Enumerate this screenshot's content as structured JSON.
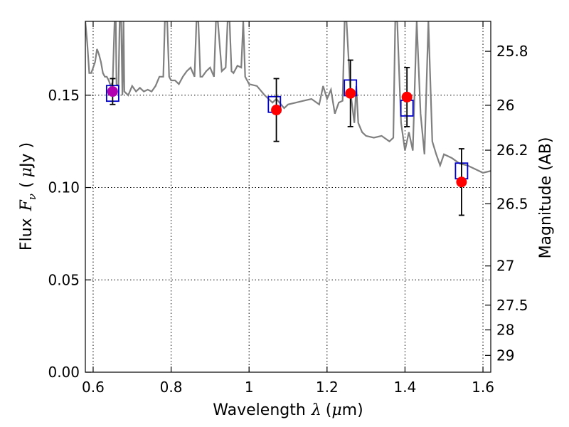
{
  "chart_data": {
    "type": "scatter",
    "xlabel_prefix": "Wavelength",
    "xlabel_symbol": "λ",
    "xlabel_unit_open": "(",
    "xlabel_unit_mu": "μ",
    "xlabel_unit_rest": "m)",
    "ylabel_prefix": "Flux",
    "ylabel_symbol": "F",
    "ylabel_sub": "ν",
    "ylabel_unit_open": "(",
    "ylabel_unit_mu": "μ",
    "ylabel_unit_rest": "Jy )",
    "y2label": "Magnitude (AB)",
    "xlim": [
      0.58,
      1.62
    ],
    "ylim": [
      0.0,
      0.19
    ],
    "x_ticks": [
      {
        "value": 0.6,
        "label": "0.6"
      },
      {
        "value": 0.8,
        "label": "0.8"
      },
      {
        "value": 1.0,
        "label": "1"
      },
      {
        "value": 1.2,
        "label": "1.2"
      },
      {
        "value": 1.4,
        "label": "1.4"
      },
      {
        "value": 1.6,
        "label": "1.6"
      }
    ],
    "y_ticks": [
      {
        "value": 0.0,
        "label": "0.00"
      },
      {
        "value": 0.05,
        "label": "0.05"
      },
      {
        "value": 0.1,
        "label": "0.10"
      },
      {
        "value": 0.15,
        "label": "0.15"
      }
    ],
    "y2_ticks": [
      {
        "value": 25.8,
        "label": "25.8"
      },
      {
        "value": 26.0,
        "label": "26"
      },
      {
        "value": 26.2,
        "label": "26.2"
      },
      {
        "value": 26.5,
        "label": "26.5"
      },
      {
        "value": 27.0,
        "label": "27"
      },
      {
        "value": 27.5,
        "label": "27.5"
      },
      {
        "value": 28.0,
        "label": "28"
      },
      {
        "value": 29.0,
        "label": "29"
      }
    ],
    "grid": true,
    "colors": {
      "model": "#808080",
      "observed": "#ff0000",
      "model_box": "#0000cc",
      "errorbar": "#000000",
      "overlap": "#b000b0"
    },
    "model_spectrum": {
      "x": [
        0.58,
        0.585,
        0.59,
        0.595,
        0.6,
        0.605,
        0.61,
        0.615,
        0.62,
        0.625,
        0.63,
        0.635,
        0.64,
        0.645,
        0.65,
        0.655,
        0.658,
        0.66,
        0.665,
        0.668,
        0.672,
        0.675,
        0.678,
        0.68,
        0.69,
        0.7,
        0.71,
        0.72,
        0.73,
        0.74,
        0.75,
        0.76,
        0.77,
        0.78,
        0.784,
        0.79,
        0.795,
        0.8,
        0.81,
        0.82,
        0.83,
        0.84,
        0.85,
        0.86,
        0.865,
        0.87,
        0.875,
        0.88,
        0.89,
        0.9,
        0.91,
        0.915,
        0.92,
        0.93,
        0.94,
        0.945,
        0.95,
        0.955,
        0.96,
        0.97,
        0.98,
        0.985,
        0.99,
        1.0,
        1.02,
        1.04,
        1.06,
        1.07,
        1.09,
        1.1,
        1.12,
        1.14,
        1.16,
        1.18,
        1.19,
        1.2,
        1.21,
        1.22,
        1.23,
        1.24,
        1.245,
        1.25,
        1.26,
        1.27,
        1.275,
        1.28,
        1.29,
        1.3,
        1.32,
        1.34,
        1.36,
        1.37,
        1.375,
        1.38,
        1.39,
        1.4,
        1.41,
        1.42,
        1.43,
        1.44,
        1.45,
        1.46,
        1.47,
        1.48,
        1.49,
        1.5,
        1.52,
        1.54,
        1.56,
        1.58,
        1.6,
        1.62
      ],
      "y": [
        0.19,
        0.178,
        0.162,
        0.162,
        0.165,
        0.168,
        0.175,
        0.172,
        0.168,
        0.162,
        0.16,
        0.16,
        0.158,
        0.155,
        0.157,
        0.19,
        0.19,
        0.156,
        0.155,
        0.19,
        0.19,
        0.15,
        0.19,
        0.152,
        0.15,
        0.155,
        0.152,
        0.154,
        0.152,
        0.153,
        0.152,
        0.155,
        0.16,
        0.16,
        0.19,
        0.19,
        0.16,
        0.158,
        0.158,
        0.156,
        0.16,
        0.163,
        0.165,
        0.16,
        0.19,
        0.19,
        0.16,
        0.16,
        0.163,
        0.165,
        0.16,
        0.19,
        0.19,
        0.163,
        0.165,
        0.19,
        0.19,
        0.163,
        0.162,
        0.166,
        0.165,
        0.19,
        0.16,
        0.156,
        0.155,
        0.15,
        0.146,
        0.148,
        0.143,
        0.145,
        0.146,
        0.147,
        0.148,
        0.145,
        0.155,
        0.148,
        0.153,
        0.14,
        0.146,
        0.147,
        0.19,
        0.19,
        0.152,
        0.135,
        0.155,
        0.135,
        0.13,
        0.128,
        0.127,
        0.128,
        0.125,
        0.127,
        0.19,
        0.19,
        0.135,
        0.12,
        0.13,
        0.12,
        0.19,
        0.14,
        0.118,
        0.19,
        0.125,
        0.118,
        0.112,
        0.118,
        0.116,
        0.113,
        0.112,
        0.11,
        0.108,
        0.109
      ],
      "smooth_segments": true
    },
    "observed": [
      {
        "x": 0.65,
        "y": 0.152,
        "yerr": 0.007
      },
      {
        "x": 1.07,
        "y": 0.142,
        "yerr": 0.017
      },
      {
        "x": 1.26,
        "y": 0.151,
        "yerr": 0.018
      },
      {
        "x": 1.405,
        "y": 0.149,
        "yerr": 0.016
      },
      {
        "x": 1.545,
        "y": 0.103,
        "yerr": 0.018
      }
    ],
    "model_photometry": [
      {
        "x": 0.65,
        "y": 0.151
      },
      {
        "x": 1.065,
        "y": 0.145
      },
      {
        "x": 1.26,
        "y": 0.154
      },
      {
        "x": 1.405,
        "y": 0.143
      },
      {
        "x": 1.545,
        "y": 0.109
      }
    ]
  }
}
